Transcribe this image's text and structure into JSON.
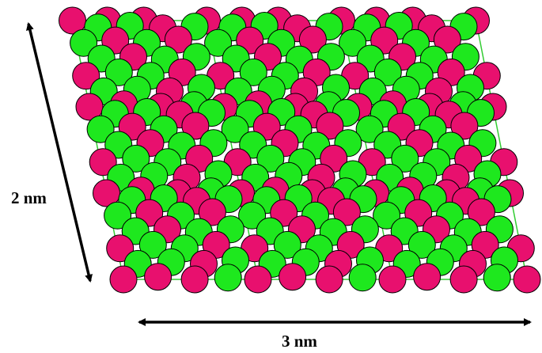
{
  "labels": {
    "vertical_dimension": "2 nm",
    "horizontal_dimension": "3 nm"
  },
  "colors": {
    "atom_a": "#e8106e",
    "atom_b": "#1ee81e",
    "grid_line": "#33cc33",
    "outline": "#000000",
    "arrow": "#000000"
  },
  "lattice": {
    "cells_along": 3,
    "cells_up": 3
  }
}
